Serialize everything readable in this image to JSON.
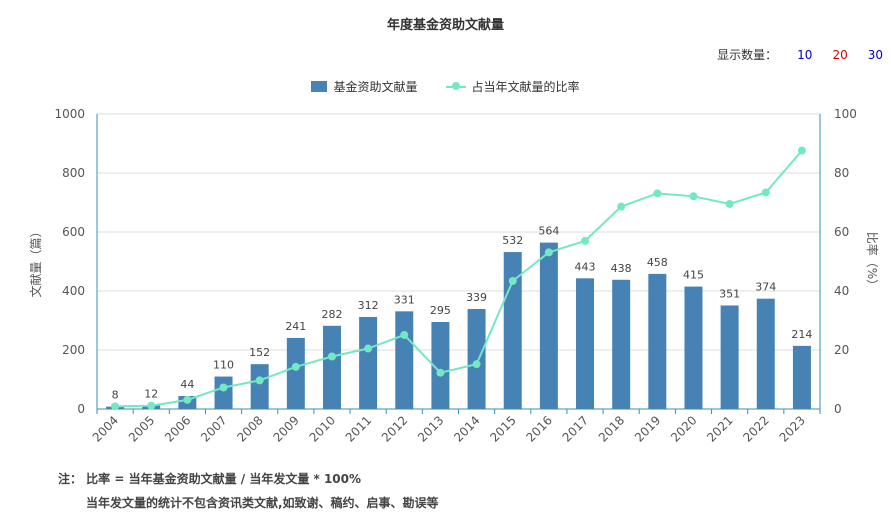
{
  "header": {
    "title": "年度基金资助文献量"
  },
  "count_selector": {
    "label": "显示数量：",
    "options": [
      {
        "label": "10",
        "color": "#0000cc"
      },
      {
        "label": "20",
        "color": "#dd0000"
      },
      {
        "label": "30",
        "color": "#0000cc"
      }
    ]
  },
  "legend": {
    "bar_label": "基金资助文献量",
    "line_label": "占当年文献量的比率"
  },
  "colors": {
    "bar": "#4682b4",
    "line": "#74e8c2",
    "axis": "#3a8fb7",
    "grid": "#dddddd"
  },
  "chart_data": {
    "type": "bar",
    "categories": [
      "2004",
      "2005",
      "2006",
      "2007",
      "2008",
      "2009",
      "2010",
      "2011",
      "2012",
      "2013",
      "2014",
      "2015",
      "2016",
      "2017",
      "2018",
      "2019",
      "2020",
      "2021",
      "2022",
      "2023"
    ],
    "series": [
      {
        "name": "基金资助文献量",
        "type": "bar",
        "axis": "left",
        "values": [
          8,
          12,
          44,
          110,
          152,
          241,
          282,
          312,
          331,
          295,
          339,
          532,
          564,
          443,
          438,
          458,
          415,
          351,
          374,
          214
        ]
      },
      {
        "name": "占当年文献量的比率",
        "type": "line",
        "axis": "right",
        "values": [
          0.9,
          1.1,
          3.1,
          7.3,
          9.7,
          14.3,
          17.8,
          20.5,
          25.1,
          12.3,
          15.2,
          43.4,
          53.1,
          57.0,
          68.6,
          73.1,
          72.1,
          69.5,
          73.4,
          87.6
        ]
      }
    ],
    "ylabel": "文献量（篇）",
    "y2label": "比率（%）",
    "ylim": [
      0,
      1000
    ],
    "y2lim": [
      0,
      100
    ],
    "yticks": [
      0,
      200,
      400,
      600,
      800,
      1000
    ],
    "y2ticks": [
      0,
      20,
      40,
      60,
      80,
      100
    ],
    "grid": true,
    "legend": "top-center"
  },
  "notes": {
    "line1": "注：  比率 = 当年基金资助文献量 / 当年发文量 * 100%",
    "line2": "当年发文量的统计不包含资讯类文献,如致谢、稿约、启事、勘误等"
  }
}
